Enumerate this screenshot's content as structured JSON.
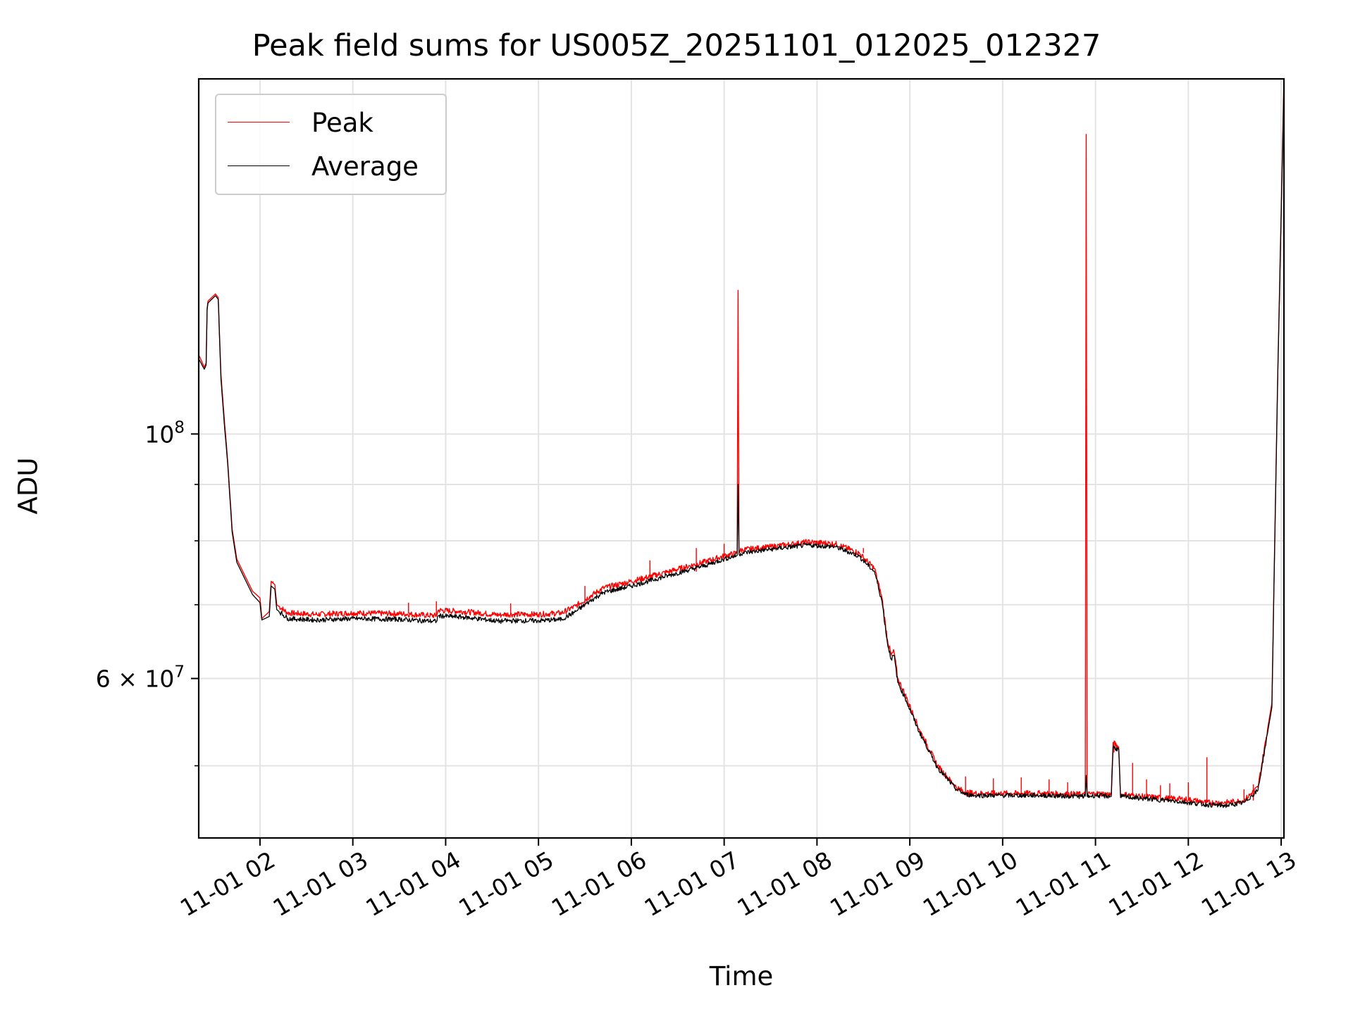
{
  "chart_data": {
    "type": "line",
    "title": "Peak field sums for US005Z_20251101_012025_012327",
    "xlabel": "Time",
    "ylabel": "ADU",
    "y_scale": "log",
    "ylim": [
      43000000,
      210000000
    ],
    "xlim_hours": [
      1.34,
      13.03
    ],
    "grid": true,
    "legend_loc": "upper left",
    "x_ticks": [
      {
        "hour": 2,
        "label": "11-01 02"
      },
      {
        "hour": 3,
        "label": "11-01 03"
      },
      {
        "hour": 4,
        "label": "11-01 04"
      },
      {
        "hour": 5,
        "label": "11-01 05"
      },
      {
        "hour": 6,
        "label": "11-01 06"
      },
      {
        "hour": 7,
        "label": "11-01 07"
      },
      {
        "hour": 8,
        "label": "11-01 08"
      },
      {
        "hour": 9,
        "label": "11-01 09"
      },
      {
        "hour": 10,
        "label": "11-01 10"
      },
      {
        "hour": 11,
        "label": "11-01 11"
      },
      {
        "hour": 12,
        "label": "11-01 12"
      },
      {
        "hour": 13,
        "label": "11-01 13"
      }
    ],
    "y_major_ticks": [
      {
        "value": 60000000,
        "base": "6 × 10",
        "exp": "7"
      },
      {
        "value": 100000000,
        "base": "10",
        "exp": "8"
      }
    ],
    "y_minor_ticks": [
      50000000,
      70000000,
      80000000,
      90000000
    ],
    "series": [
      {
        "name": "Peak",
        "color": "#ff0000",
        "x": [
          1.34,
          1.4,
          1.42,
          1.43,
          1.44,
          1.52,
          1.55,
          1.58,
          1.62,
          1.65,
          1.7,
          1.75,
          1.85,
          1.92,
          2.0,
          2.02,
          2.1,
          2.12,
          2.16,
          2.18,
          2.3,
          2.6,
          3.0,
          3.5,
          3.9,
          3.92,
          4.2,
          4.6,
          4.62,
          5.0,
          5.25,
          5.4,
          5.55,
          5.7,
          6.0,
          6.4,
          6.8,
          7.0,
          7.14,
          7.15,
          7.16,
          7.2,
          7.5,
          7.9,
          8.2,
          8.45,
          8.62,
          8.7,
          8.76,
          8.8,
          8.83,
          8.87,
          8.95,
          9.1,
          9.3,
          9.5,
          9.6,
          9.7,
          10.0,
          10.4,
          10.89,
          10.9,
          10.91,
          11.0,
          11.17,
          11.19,
          11.25,
          11.27,
          11.3,
          11.5,
          11.8,
          12.0,
          12.2,
          12.4,
          12.6,
          12.75,
          12.9,
          12.96,
          13.03
        ],
        "y": [
          118000000,
          115000000,
          116000000,
          130000000,
          132000000,
          134000000,
          133000000,
          113000000,
          102000000,
          95000000,
          82000000,
          77000000,
          74000000,
          72000000,
          71000000,
          68000000,
          69000000,
          73500000,
          73000000,
          70000000,
          68800000,
          68600000,
          68800000,
          68700000,
          68400000,
          69200000,
          69000000,
          68500000,
          68600000,
          68600000,
          68800000,
          69800000,
          71200000,
          72500000,
          73500000,
          75000000,
          76600000,
          77500000,
          78000000,
          135000000,
          78300000,
          78500000,
          79000000,
          79800000,
          79500000,
          78000000,
          75500000,
          71000000,
          65000000,
          63000000,
          63500000,
          60000000,
          58000000,
          54000000,
          50000000,
          47800000,
          47300000,
          47200000,
          47200000,
          47200000,
          47100000,
          187000000,
          47100000,
          47200000,
          47100000,
          52500000,
          52000000,
          47000000,
          47100000,
          46900000,
          46700000,
          46600000,
          46300000,
          46300000,
          46500000,
          47800000,
          57000000,
          110000000,
          210000000
        ]
      },
      {
        "name": "Average",
        "color": "#000000",
        "x": [
          1.34,
          1.4,
          1.42,
          1.43,
          1.44,
          1.52,
          1.55,
          1.58,
          1.62,
          1.65,
          1.7,
          1.75,
          1.85,
          1.92,
          2.0,
          2.02,
          2.1,
          2.12,
          2.16,
          2.18,
          2.3,
          2.6,
          3.0,
          3.5,
          3.9,
          3.92,
          4.2,
          4.6,
          4.62,
          5.0,
          5.25,
          5.4,
          5.55,
          5.7,
          6.0,
          6.4,
          6.8,
          7.0,
          7.14,
          7.15,
          7.16,
          7.2,
          7.5,
          7.9,
          8.2,
          8.45,
          8.62,
          8.7,
          8.76,
          8.8,
          8.83,
          8.87,
          8.95,
          9.1,
          9.3,
          9.5,
          9.6,
          9.7,
          10.0,
          10.4,
          10.89,
          10.9,
          10.91,
          11.0,
          11.17,
          11.19,
          11.25,
          11.27,
          11.3,
          11.5,
          11.8,
          12.0,
          12.2,
          12.4,
          12.6,
          12.75,
          12.9,
          12.96,
          13.03
        ],
        "y": [
          117000000,
          114500000,
          115500000,
          129500000,
          131500000,
          133500000,
          132500000,
          112000000,
          101000000,
          94500000,
          81500000,
          76500000,
          73500000,
          71500000,
          70300000,
          67800000,
          68300000,
          72800000,
          72300000,
          69300000,
          68000000,
          67800000,
          68000000,
          67900000,
          67600000,
          68400000,
          68200000,
          67600000,
          67700000,
          67700000,
          67900000,
          69000000,
          70500000,
          71800000,
          72800000,
          74400000,
          76000000,
          77000000,
          77600000,
          90000000,
          77800000,
          78000000,
          78600000,
          79300000,
          79000000,
          77500000,
          75000000,
          70500000,
          64500000,
          62500000,
          63000000,
          59500000,
          57600000,
          53700000,
          49800000,
          47600000,
          47100000,
          47000000,
          47000000,
          47000000,
          46900000,
          49000000,
          46900000,
          47000000,
          46900000,
          52000000,
          51700000,
          46800000,
          46900000,
          46700000,
          46500000,
          46300000,
          46100000,
          46000000,
          46300000,
          47500000,
          56500000,
          109000000,
          208000000
        ]
      }
    ],
    "spikes": [
      {
        "series": "Peak",
        "x": [
          2.12,
          2.14,
          3.6,
          3.9,
          4.7,
          5.5,
          6.2,
          6.7,
          7.0,
          8.5,
          9.6,
          9.9,
          10.2,
          10.5,
          10.7,
          11.2,
          11.4,
          11.55,
          11.7,
          11.8,
          12.0,
          12.2,
          12.6,
          12.7
        ],
        "y": [
          73500000,
          73300000,
          70300000,
          70500000,
          70200000,
          72800000,
          76800000,
          78800000,
          79500000,
          78800000,
          48900000,
          48700000,
          48800000,
          48600000,
          48300000,
          51400000,
          50300000,
          48600000,
          48000000,
          48200000,
          48300000,
          50900000,
          47600000,
          48100000
        ]
      }
    ]
  }
}
